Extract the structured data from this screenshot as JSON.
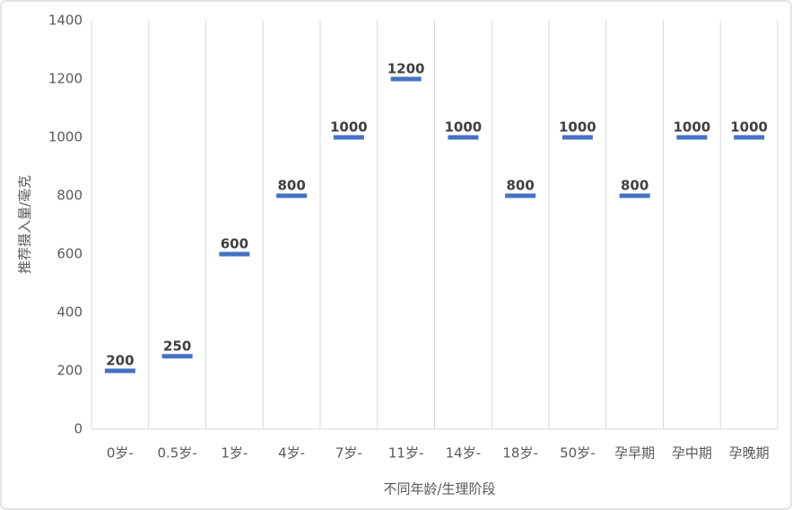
{
  "chart_data": {
    "type": "line",
    "marker": "dash",
    "connect": false,
    "x_label": "不同年龄/生理阶段",
    "y_label": "推荐摄入量/毫克",
    "categories": [
      "0岁-",
      "0.5岁-",
      "1岁-",
      "4岁-",
      "7岁-",
      "11岁-",
      "14岁-",
      "18岁-",
      "50岁-",
      "孕早期",
      "孕中期",
      "孕晚期"
    ],
    "values": [
      200,
      250,
      600,
      800,
      1000,
      1200,
      1000,
      800,
      1000,
      800,
      1000,
      1000
    ],
    "color": "#4472c4",
    "ylim": [
      0,
      1400
    ],
    "yticks": [
      0,
      200,
      400,
      600,
      800,
      1000,
      1200,
      1400
    ],
    "grid": "vertical",
    "data_labels": true
  }
}
